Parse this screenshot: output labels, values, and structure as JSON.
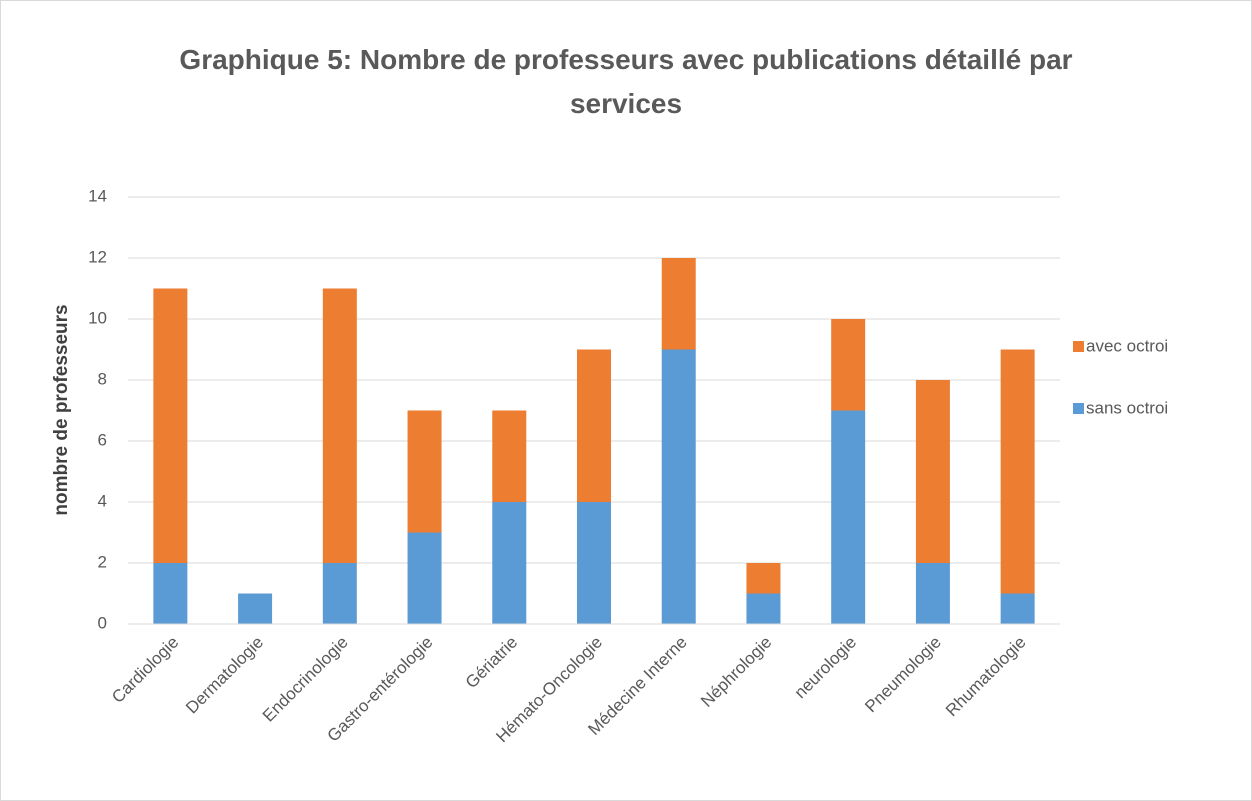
{
  "chart_data": {
    "type": "stacked_bar",
    "title": "Graphique 5: Nombre de professeurs avec publications détaillé par services",
    "y_label": "nombre de professeurs",
    "categories": [
      "Cardiologie",
      "Dermatologie",
      "Endocrinologie",
      "Gastro-entérologie",
      "Gériatrie",
      "Hémato-Oncologie",
      "Médecine Interne",
      "Néphrologie",
      "neurologie",
      "Pneumologie",
      "Rhumatologie"
    ],
    "series": [
      {
        "name": "sans octroi",
        "color": "#5b9bd5",
        "values": [
          2,
          1,
          2,
          3,
          4,
          4,
          9,
          1,
          7,
          2,
          1
        ]
      },
      {
        "name": "avec octroi",
        "color": "#ed7d31",
        "values": [
          9,
          0,
          9,
          4,
          3,
          5,
          3,
          1,
          3,
          6,
          8
        ]
      }
    ],
    "ylim": [
      0,
      14
    ],
    "yticks": [
      0,
      2,
      4,
      6,
      8,
      10,
      12,
      14
    ],
    "grid": true,
    "legend": "right"
  }
}
